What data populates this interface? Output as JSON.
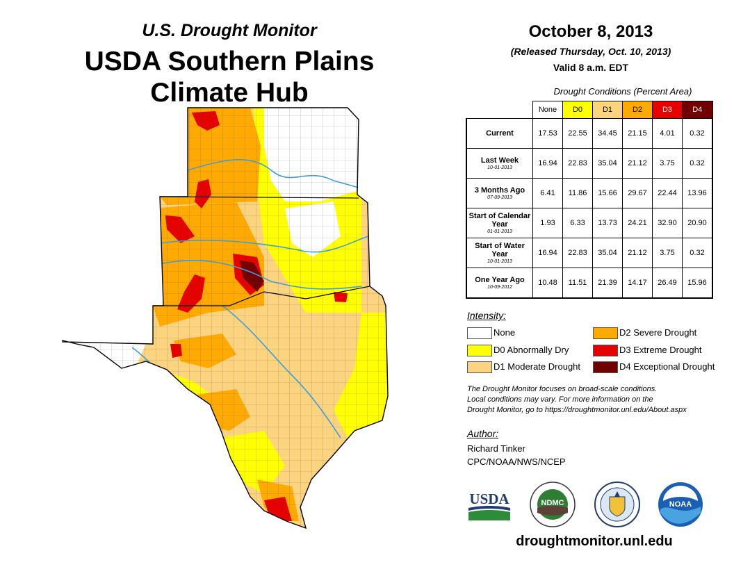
{
  "header": {
    "subtitle": "U.S. Drought Monitor",
    "title_line1": "USDA Southern Plains",
    "title_line2": "Climate Hub"
  },
  "date_block": {
    "date": "October 8, 2013",
    "released": "(Released Thursday, Oct. 10, 2013)",
    "valid": "Valid 8 a.m. EDT"
  },
  "conditions": {
    "caption": "Drought Conditions (Percent Area)",
    "columns": [
      {
        "label": "None",
        "color": "#ffffff",
        "text_color": "#000000"
      },
      {
        "label": "D0",
        "color": "#ffff00",
        "text_color": "#000000"
      },
      {
        "label": "D1",
        "color": "#fcd37f",
        "text_color": "#000000"
      },
      {
        "label": "D2",
        "color": "#ffaa00",
        "text_color": "#000000"
      },
      {
        "label": "D3",
        "color": "#e60000",
        "text_color": "#ffffff"
      },
      {
        "label": "D4",
        "color": "#730000",
        "text_color": "#ffffff"
      }
    ],
    "rows": [
      {
        "label": "Current",
        "sub": "",
        "values": [
          "17.53",
          "22.55",
          "34.45",
          "21.15",
          "4.01",
          "0.32"
        ]
      },
      {
        "label": "Last Week",
        "sub": "10-01-2013",
        "values": [
          "16.94",
          "22.83",
          "35.04",
          "21.12",
          "3.75",
          "0.32"
        ]
      },
      {
        "label": "3 Months Ago",
        "sub": "07-09-2013",
        "values": [
          "6.41",
          "11.86",
          "15.66",
          "29.67",
          "22.44",
          "13.96"
        ]
      },
      {
        "label": "Start of Calendar Year",
        "sub": "01-01-2013",
        "values": [
          "1.93",
          "6.33",
          "13.73",
          "24.21",
          "32.90",
          "20.90"
        ]
      },
      {
        "label": "Start of Water Year",
        "sub": "10-01-2013",
        "values": [
          "16.94",
          "22.83",
          "35.04",
          "21.12",
          "3.75",
          "0.32"
        ]
      },
      {
        "label": "One Year Ago",
        "sub": "10-09-2012",
        "values": [
          "10.48",
          "11.51",
          "21.39",
          "14.17",
          "26.49",
          "15.96"
        ]
      }
    ]
  },
  "legend": {
    "title": "Intensity:",
    "items": [
      {
        "label": "None",
        "color": "#ffffff"
      },
      {
        "label": "D0 Abnormally Dry",
        "color": "#ffff00"
      },
      {
        "label": "D1 Moderate Drought",
        "color": "#fcd37f"
      },
      {
        "label": "D2 Severe Drought",
        "color": "#ffaa00"
      },
      {
        "label": "D3 Extreme Drought",
        "color": "#e60000"
      },
      {
        "label": "D4 Exceptional Drought",
        "color": "#730000"
      }
    ]
  },
  "note": {
    "line1": "The Drought Monitor focuses on broad-scale conditions.",
    "line2": "Local conditions may vary. For more information on the",
    "line3": "Drought Monitor, go to https://droughtmonitor.unl.edu/About.aspx"
  },
  "author": {
    "label": "Author:",
    "name": "Richard Tinker",
    "org": "CPC/NOAA/NWS/NCEP"
  },
  "logos": {
    "usda": "USDA",
    "ndmc": "NDMC",
    "noaa": "NOAA"
  },
  "footer": {
    "url": "droughtmonitor.unl.edu"
  },
  "map": {
    "river_color": "#3f9ed8",
    "county_line_color": "#555555"
  }
}
